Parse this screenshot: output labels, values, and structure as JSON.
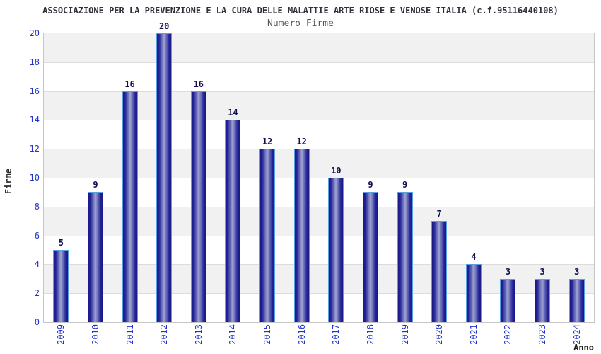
{
  "header": {
    "title": "ASSOCIAZIONE PER LA PREVENZIONE E LA CURA DELLE MALATTIE ARTE RIOSE E VENOSE ITALIA (c.f.95116440108)",
    "subtitle": "Numero Firme"
  },
  "chart_data": {
    "type": "bar",
    "title": "Numero Firme",
    "categories": [
      "2009",
      "2010",
      "2011",
      "2012",
      "2013",
      "2014",
      "2015",
      "2016",
      "2017",
      "2018",
      "2019",
      "2020",
      "2021",
      "2022",
      "2023",
      "2024"
    ],
    "values": [
      5,
      9,
      16,
      20,
      16,
      14,
      12,
      12,
      10,
      9,
      9,
      7,
      4,
      3,
      3,
      3
    ],
    "xlabel": "Anno",
    "ylabel": "Firme",
    "ylim": [
      0,
      20
    ],
    "ytick_step": 2,
    "grid": "horizontal-alternating-bands",
    "legend": "none",
    "value_labels": "above-bars",
    "colors": {
      "bar_edge_dark": "#191985",
      "bar_mid": "#24249a",
      "bar_center_light": "#a0a5d0",
      "bar_border": "#5b9fe3",
      "tick_label": "#2233cc",
      "value_label": "#10104f",
      "band_gray": "#f1f1f1",
      "band_white": "#ffffff",
      "gridline": "#dcdcdc",
      "plot_border": "#c6c6c6",
      "title_color": "#30303c",
      "subtitle_color": "#55555f"
    }
  }
}
